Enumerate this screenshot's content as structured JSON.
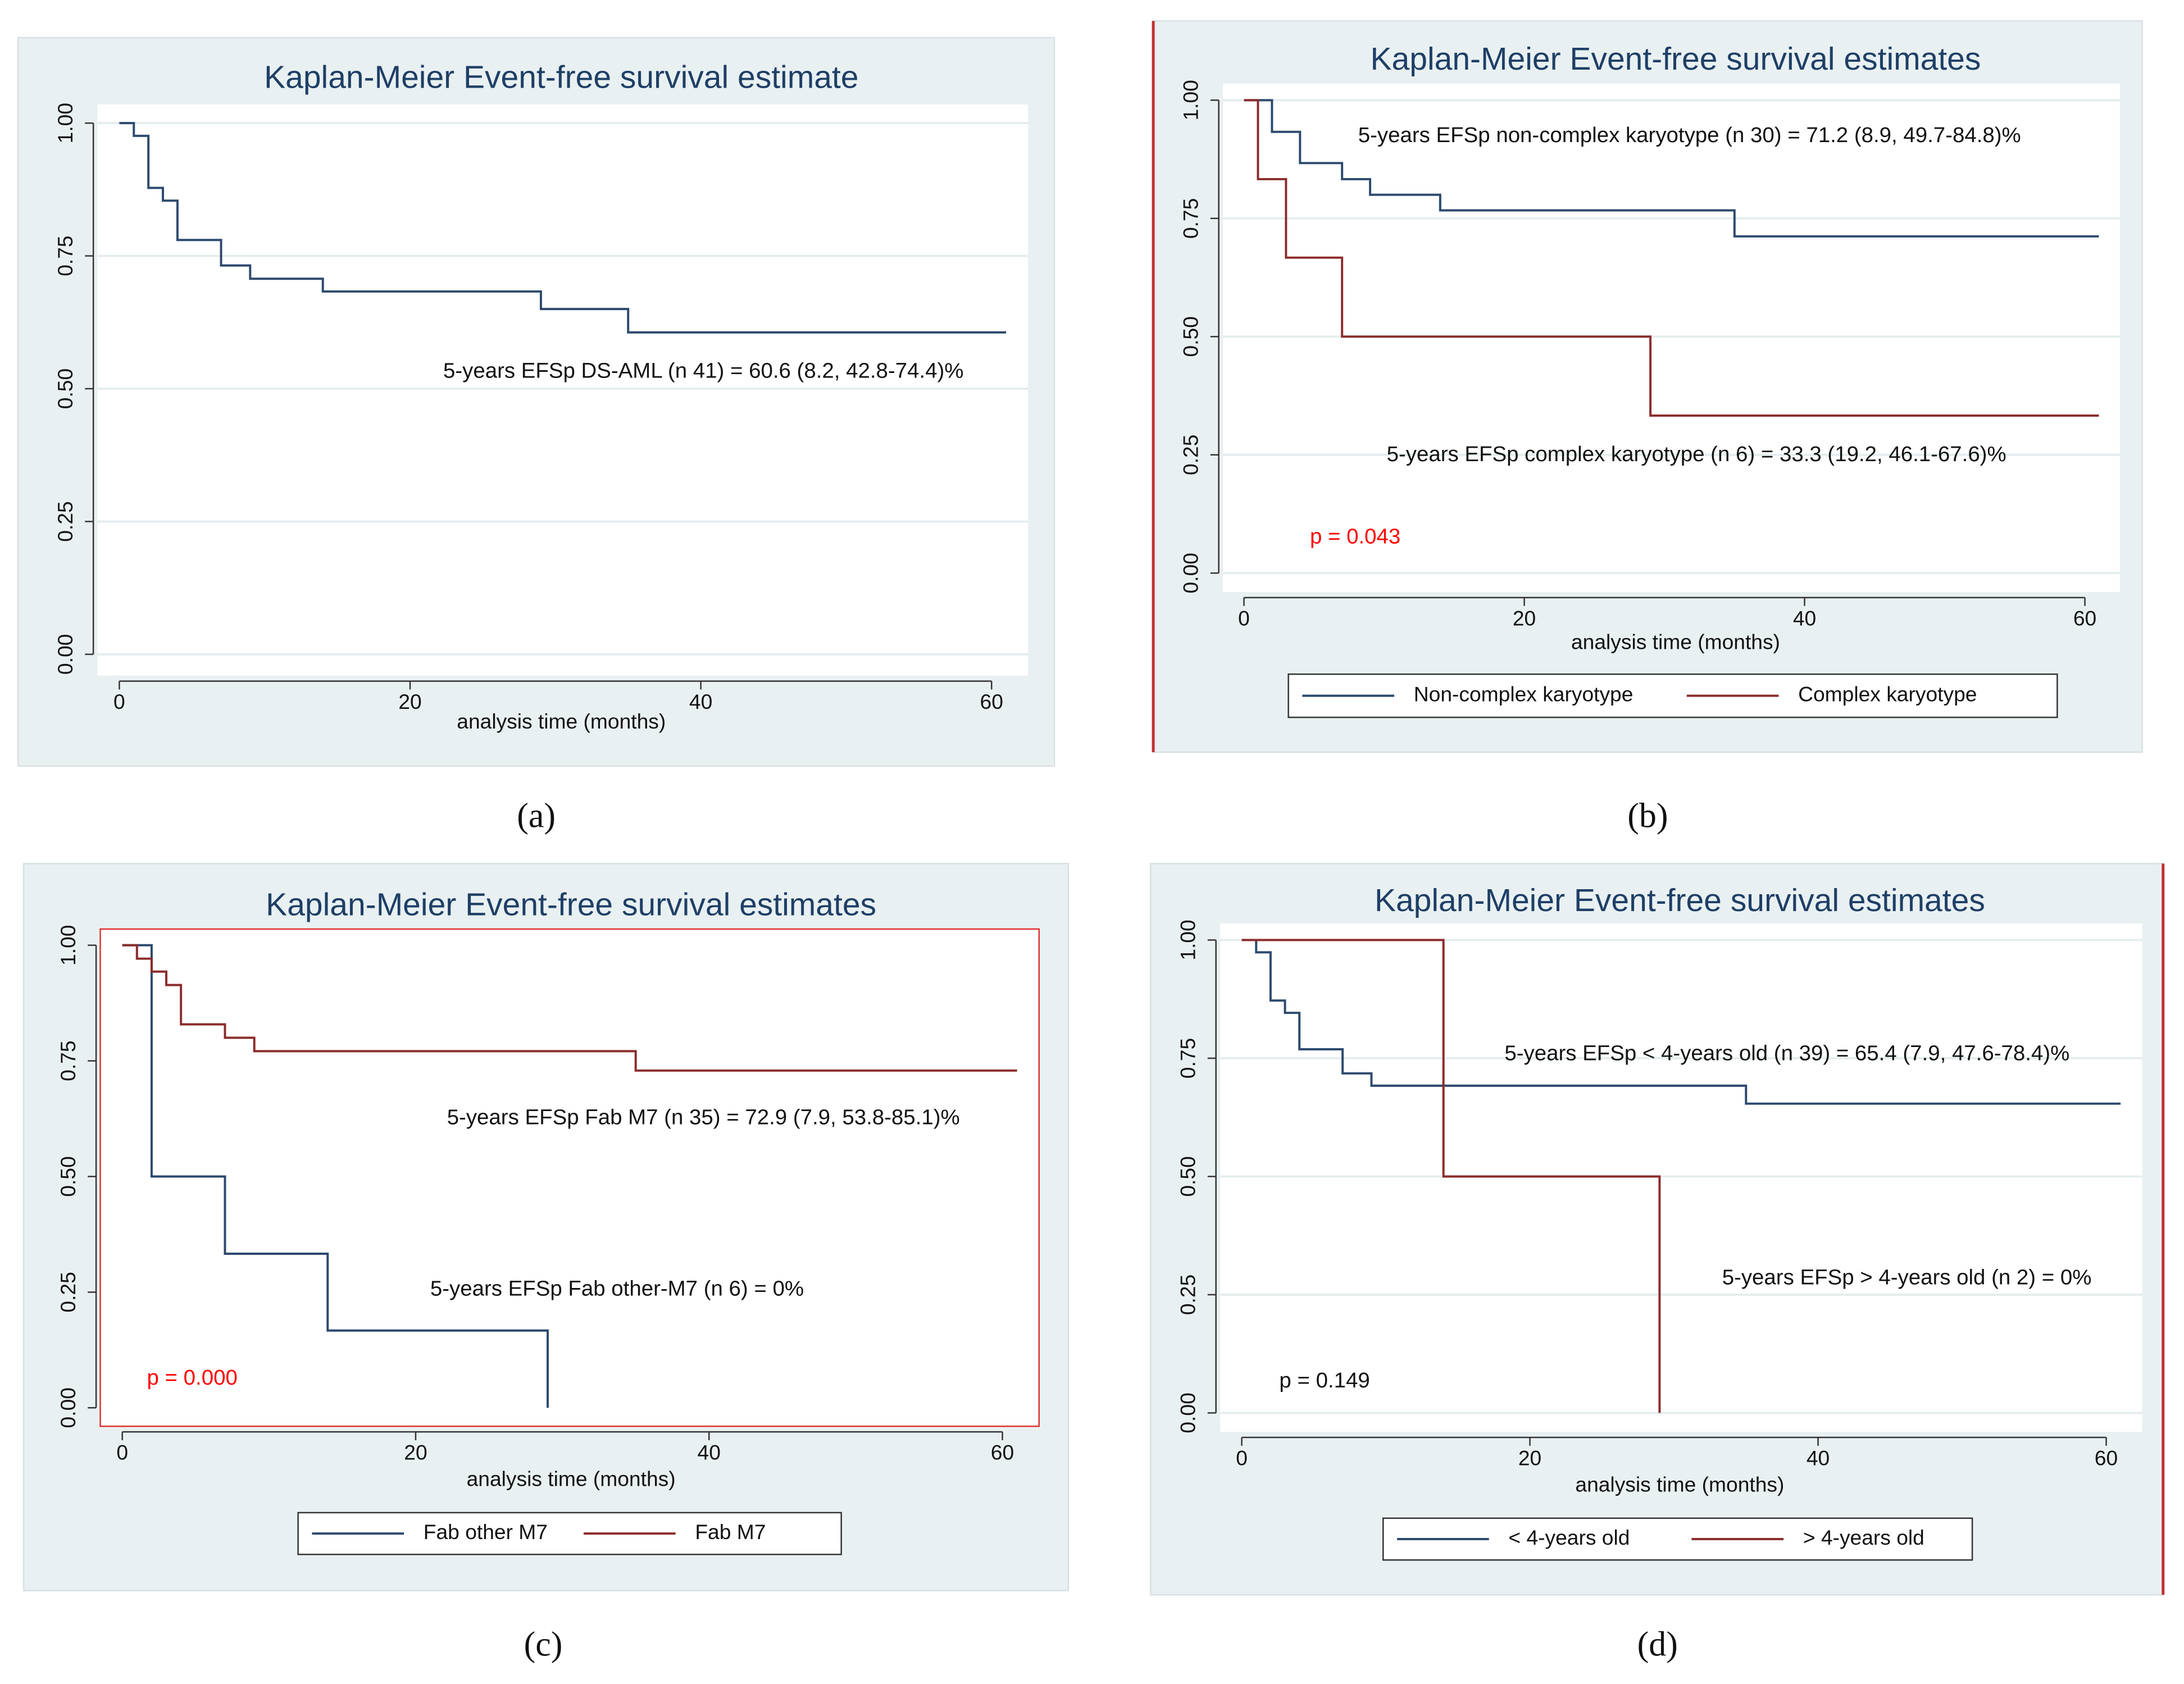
{
  "charts": [
    {
      "type": "step",
      "title": "Kaplan-Meier Event-free survival estimate",
      "caption": "(a)",
      "xlabel": "analysis time (months)",
      "xlim": [
        -1.5,
        62.5
      ],
      "xticks": [
        0,
        20,
        40,
        60
      ],
      "ylim": [
        -0.04,
        1.035
      ],
      "yticks": [
        {
          "value": 0,
          "label": "0.00"
        },
        {
          "value": 0.25,
          "label": "0.25"
        },
        {
          "value": 0.5,
          "label": "0.50"
        },
        {
          "value": 0.75,
          "label": "0.75"
        },
        {
          "value": 1,
          "label": "1.00"
        }
      ],
      "grid": true,
      "series": [
        {
          "color": "#2c4a6e",
          "x": [
            0,
            1,
            2,
            3,
            4,
            7,
            9,
            14,
            29,
            35,
            61
          ],
          "values": [
            1,
            0.976,
            0.878,
            0.854,
            0.78,
            0.732,
            0.707,
            0.683,
            0.65,
            0.606,
            0.606
          ]
        }
      ],
      "annotations": [
        {
          "text": "5-years EFSp DS-AML (n 41) = 60.6 (8.2, 42.8-74.4)%",
          "color": "#111111"
        }
      ]
    },
    {
      "type": "step",
      "title": "Kaplan-Meier Event-free survival estimates",
      "caption": "(b)",
      "xlabel": "analysis time (months)",
      "xlim": [
        -1.5,
        62.5
      ],
      "xticks": [
        0,
        20,
        40,
        60
      ],
      "ylim": [
        -0.04,
        1.035
      ],
      "yticks": [
        {
          "value": 0,
          "label": "0.00"
        },
        {
          "value": 0.25,
          "label": "0.25"
        },
        {
          "value": 0.5,
          "label": "0.50"
        },
        {
          "value": 0.75,
          "label": "0.75"
        },
        {
          "value": 1,
          "label": "1.00"
        }
      ],
      "grid": true,
      "series": [
        {
          "name": "Non-complex karyotype",
          "color": "#2c4a6e",
          "x": [
            0,
            2,
            4,
            7,
            9,
            14,
            35,
            61
          ],
          "values": [
            1,
            0.933,
            0.867,
            0.833,
            0.8,
            0.767,
            0.712,
            0.712
          ]
        },
        {
          "name": "Complex karyotype",
          "color": "#8b2c2c",
          "x": [
            0,
            1,
            3,
            7,
            29,
            61
          ],
          "values": [
            1,
            0.833,
            0.667,
            0.5,
            0.333,
            0.333
          ]
        }
      ],
      "annotations": [
        {
          "text": "5-years EFSp non-complex karyotype (n 30) = 71.2 (8.9, 49.7-84.8)%",
          "color": "#111111"
        },
        {
          "text": "5-years EFSp complex karyotype (n 6) = 33.3 (19.2, 46.1-67.6)%",
          "color": "#111111"
        },
        {
          "text": "p = 0.043",
          "color": "#ff0000"
        }
      ]
    },
    {
      "type": "step",
      "title": "Kaplan-Meier Event-free survival estimates",
      "caption": "(c)",
      "xlabel": "analysis time (months)",
      "xlim": [
        -1.5,
        62.5
      ],
      "xticks": [
        0,
        20,
        40,
        60
      ],
      "ylim": [
        -0.04,
        1.035
      ],
      "yticks": [
        {
          "value": 0,
          "label": "0.00"
        },
        {
          "value": 0.25,
          "label": "0.25"
        },
        {
          "value": 0.5,
          "label": "0.50"
        },
        {
          "value": 0.75,
          "label": "0.75"
        },
        {
          "value": 1,
          "label": "1.00"
        }
      ],
      "grid": false,
      "series": [
        {
          "name": "Fab other M7",
          "color": "#2c4a6e",
          "x": [
            0,
            2,
            7,
            14,
            29
          ],
          "values": [
            1,
            0.5,
            0.333,
            0.167,
            0
          ]
        },
        {
          "name": "Fab M7",
          "color": "#8b2c2c",
          "x": [
            0,
            1,
            2,
            3,
            4,
            7,
            9,
            35,
            61
          ],
          "values": [
            1,
            0.971,
            0.943,
            0.914,
            0.829,
            0.8,
            0.771,
            0.729,
            0.729
          ]
        }
      ],
      "annotations": [
        {
          "text": "5-years EFSp Fab M7 (n 35) = 72.9 (7.9, 53.8-85.1)%",
          "color": "#111111"
        },
        {
          "text": "5-years EFSp Fab other-M7 (n 6) = 0%",
          "color": "#111111"
        },
        {
          "text": "p = 0.000",
          "color": "#ff0000"
        }
      ]
    },
    {
      "type": "step",
      "title": "Kaplan-Meier Event-free survival estimates",
      "caption": "(d)",
      "xlabel": "analysis time (months)",
      "xlim": [
        -1.5,
        62.5
      ],
      "xticks": [
        0,
        20,
        40,
        60
      ],
      "ylim": [
        -0.04,
        1.035
      ],
      "yticks": [
        {
          "value": 0,
          "label": "0.00"
        },
        {
          "value": 0.25,
          "label": "0.25"
        },
        {
          "value": 0.5,
          "label": "0.50"
        },
        {
          "value": 0.75,
          "label": "0.75"
        },
        {
          "value": 1,
          "label": "1.00"
        }
      ],
      "grid": true,
      "series": [
        {
          "name": "< 4-years old",
          "color": "#2c4a6e",
          "x": [
            0,
            1,
            2,
            3,
            4,
            7,
            9,
            35,
            61
          ],
          "values": [
            1,
            0.974,
            0.872,
            0.846,
            0.769,
            0.718,
            0.692,
            0.654,
            0.654
          ]
        },
        {
          "name": "> 4-years old",
          "color": "#8b2c2c",
          "x": [
            0,
            14,
            29
          ],
          "values": [
            1,
            0.5,
            0
          ]
        }
      ],
      "annotations": [
        {
          "text": "5-years EFSp < 4-years old (n 39) = 65.4 (7.9, 47.6-78.4)%",
          "color": "#111111"
        },
        {
          "text": "5-years EFSp > 4-years old (n 2) = 0%",
          "color": "#111111"
        },
        {
          "text": "p = 0.149",
          "color": "#111111"
        }
      ]
    }
  ]
}
